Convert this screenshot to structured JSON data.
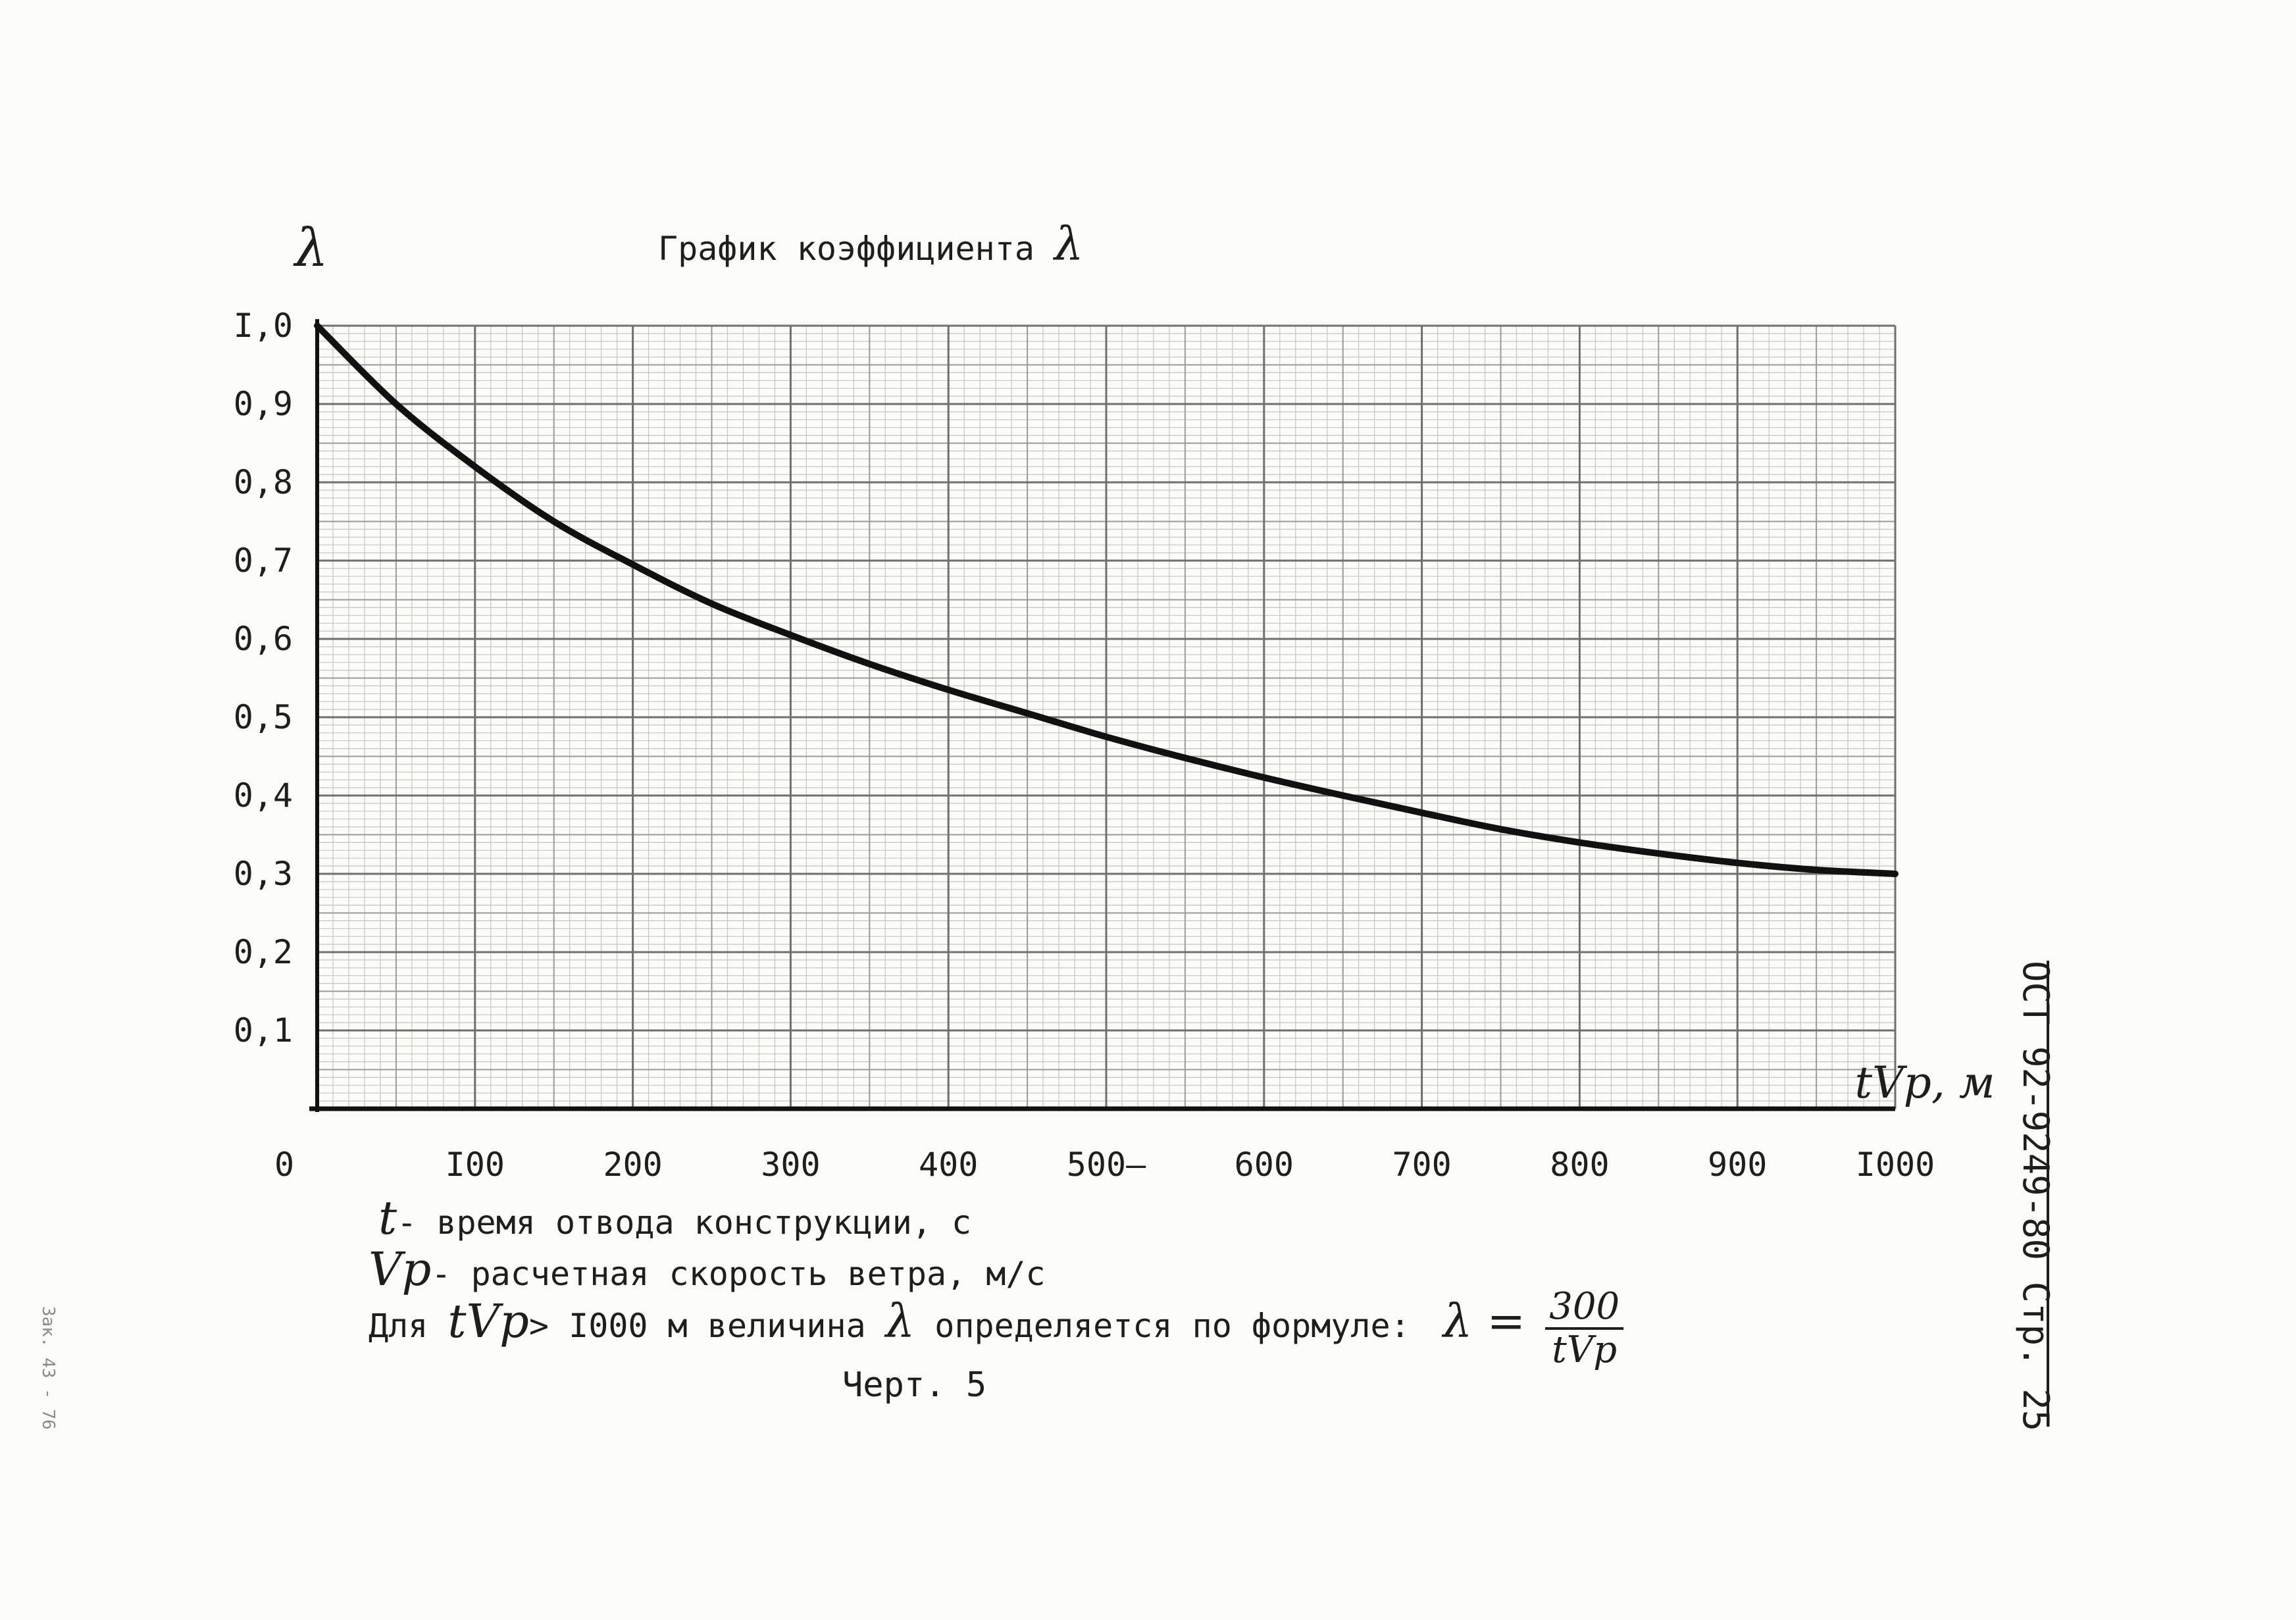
{
  "chart_data": {
    "type": "line",
    "title": "График коэффициента",
    "title_symbol": "λ",
    "ylabel": "λ",
    "xlabel": "tVр, м",
    "xlim": [
      0,
      1000
    ],
    "ylim": [
      0,
      1.0
    ],
    "grid": true,
    "x_ticks": [
      "0",
      "I00",
      "200",
      "300",
      "400",
      "500–",
      "600",
      "700",
      "800",
      "900",
      "I000"
    ],
    "y_ticks": [
      "I,0",
      "0,9",
      "0,8",
      "0,7",
      "0,6",
      "0,5",
      "0,4",
      "0,3",
      "0,2",
      "0,1"
    ],
    "x": [
      0,
      50,
      100,
      150,
      200,
      250,
      300,
      350,
      400,
      450,
      500,
      550,
      600,
      650,
      700,
      750,
      800,
      850,
      900,
      950,
      1000
    ],
    "y": [
      1.0,
      0.9,
      0.82,
      0.75,
      0.695,
      0.645,
      0.605,
      0.568,
      0.535,
      0.505,
      0.475,
      0.448,
      0.423,
      0.4,
      0.378,
      0.357,
      0.34,
      0.326,
      0.314,
      0.305,
      0.3
    ]
  },
  "notes": {
    "t_symbol": "t",
    "t_text": "- время отвода конструкции, с",
    "vp_symbol": "Vр",
    "vp_text": "- расчетная  скорость ветра, м/с",
    "formula_prefix": "Для",
    "formula_cond_symbol": "tVр",
    "formula_cond_text": "> I000 м величина",
    "formula_lambda": "λ",
    "formula_mid": "определяется по формуле:",
    "formula_lhs": "λ  =",
    "formula_num": "300",
    "formula_den": "tVр"
  },
  "caption": "Черт. 5",
  "side_code": "ОСТ 92-9249-80 Стр. 25",
  "stamp": "Зак. 43 - 76"
}
